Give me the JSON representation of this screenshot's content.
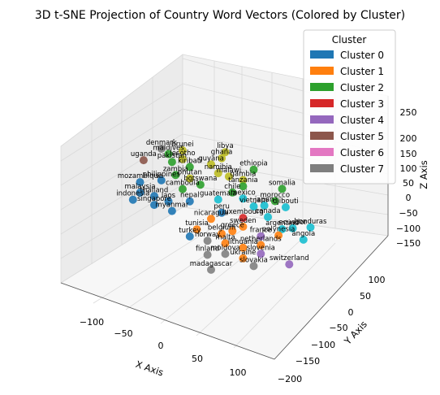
{
  "chart_data": {
    "type": "scatter",
    "projection": "3d",
    "title": "3D t-SNE Projection of Country Word Vectors (Colored by Cluster)",
    "xlabel": "X Axis",
    "ylabel": "Y Axis",
    "zlabel": "Z Axis",
    "xlim": [
      -140,
      140
    ],
    "ylim": [
      -200,
      130
    ],
    "zlim": [
      -170,
      270
    ],
    "x_ticks": [
      "−100",
      "−50",
      "0",
      "50",
      "100"
    ],
    "y_ticks": [
      "−200",
      "−150",
      "−100",
      "−50",
      "0",
      "50",
      "100"
    ],
    "z_ticks": [
      "−150",
      "−100",
      "−50",
      "0",
      "50",
      "100",
      "150",
      "200",
      "250"
    ],
    "grid": true,
    "legend": {
      "title": "Cluster",
      "position": "top-right",
      "entries": [
        {
          "label": "Cluster 0",
          "color": "#1f77b4"
        },
        {
          "label": "Cluster 1",
          "color": "#ff7f0e"
        },
        {
          "label": "Cluster 2",
          "color": "#2ca02c"
        },
        {
          "label": "Cluster 3",
          "color": "#d62728"
        },
        {
          "label": "Cluster 4",
          "color": "#9467bd"
        },
        {
          "label": "Cluster 5",
          "color": "#8c564b"
        },
        {
          "label": "Cluster 6",
          "color": "#e377c2"
        },
        {
          "label": "Cluster 7",
          "color": "#7f7f7f"
        }
      ]
    },
    "extra_colors": [
      "#bcbd22",
      "#17becf"
    ],
    "points": [
      {
        "label": "brunei",
        "x": -40,
        "y": 30,
        "z": 170,
        "c": 8
      },
      {
        "label": "libya",
        "x": 20,
        "y": 30,
        "z": 195,
        "c": 8
      },
      {
        "label": "ghana",
        "x": 15,
        "y": 30,
        "z": 175,
        "c": 8
      },
      {
        "label": "denmark",
        "x": -70,
        "y": 30,
        "z": 160,
        "c": 7
      },
      {
        "label": "maldives",
        "x": -60,
        "y": 30,
        "z": 150,
        "c": 2
      },
      {
        "label": "lesotho",
        "x": -40,
        "y": 30,
        "z": 145,
        "c": 8
      },
      {
        "label": "guyana",
        "x": 0,
        "y": 30,
        "z": 150,
        "c": 8
      },
      {
        "label": "ethiopia",
        "x": 60,
        "y": 30,
        "z": 165,
        "c": 2
      },
      {
        "label": "pakistan",
        "x": -55,
        "y": 30,
        "z": 130,
        "c": 2
      },
      {
        "label": "kiribati",
        "x": -30,
        "y": 30,
        "z": 128,
        "c": 2
      },
      {
        "label": "namibia",
        "x": 10,
        "y": 30,
        "z": 130,
        "c": 8
      },
      {
        "label": "malawi",
        "x": 25,
        "y": 30,
        "z": 128,
        "c": 8
      },
      {
        "label": "gambia",
        "x": 45,
        "y": 30,
        "z": 128,
        "c": 8
      },
      {
        "label": "somalia",
        "x": 100,
        "y": 30,
        "z": 130,
        "c": 2
      },
      {
        "label": "uganda",
        "x": -95,
        "y": 30,
        "z": 115,
        "c": 5
      },
      {
        "label": "tanzania",
        "x": 45,
        "y": 30,
        "z": 110,
        "c": 2
      },
      {
        "label": "morocco",
        "x": 90,
        "y": 30,
        "z": 90,
        "c": 2
      },
      {
        "label": "zambia",
        "x": -50,
        "y": 30,
        "z": 95,
        "c": 2
      },
      {
        "label": "bhutan",
        "x": -30,
        "y": 30,
        "z": 95,
        "c": 8
      },
      {
        "label": "japan",
        "x": 75,
        "y": 30,
        "z": 70,
        "c": 9
      },
      {
        "label": "botswana",
        "x": -15,
        "y": 30,
        "z": 85,
        "c": 2
      },
      {
        "label": "chile",
        "x": 30,
        "y": 30,
        "z": 85,
        "c": 2
      },
      {
        "label": "djibouti",
        "x": 105,
        "y": 30,
        "z": 80,
        "c": 9
      },
      {
        "label": "mexico",
        "x": 45,
        "y": 30,
        "z": 75,
        "c": 9
      },
      {
        "label": "vietnam",
        "x": 60,
        "y": 30,
        "z": 60,
        "c": 9
      },
      {
        "label": "philippines",
        "x": -70,
        "y": 30,
        "z": 70,
        "c": 0
      },
      {
        "label": "cambodia",
        "x": -40,
        "y": 30,
        "z": 60,
        "c": 2
      },
      {
        "label": "guatemala",
        "x": 10,
        "y": 30,
        "z": 55,
        "c": 9
      },
      {
        "label": "honduras",
        "x": 140,
        "y": 30,
        "z": 40,
        "c": 9
      },
      {
        "label": "mozambique",
        "x": -100,
        "y": 30,
        "z": 50,
        "c": 0
      },
      {
        "label": "canada",
        "x": 80,
        "y": 30,
        "z": 40,
        "c": 9
      },
      {
        "label": "nepal",
        "x": -30,
        "y": 30,
        "z": 30,
        "c": 0
      },
      {
        "label": "ecuador",
        "x": 115,
        "y": 30,
        "z": 25,
        "c": 9
      },
      {
        "label": "malaysia",
        "x": -100,
        "y": 30,
        "z": 20,
        "c": 0
      },
      {
        "label": "thailand",
        "x": -80,
        "y": 30,
        "z": 20,
        "c": 0
      },
      {
        "label": "laos",
        "x": -60,
        "y": 30,
        "z": 15,
        "c": 0
      },
      {
        "label": "peru",
        "x": 15,
        "y": 30,
        "z": 20,
        "c": 0
      },
      {
        "label": "luxembourg",
        "x": 45,
        "y": 30,
        "z": 20,
        "c": 3
      },
      {
        "label": "argentina",
        "x": 100,
        "y": 30,
        "z": 15,
        "c": 9
      },
      {
        "label": "angola",
        "x": 130,
        "y": 30,
        "z": 0,
        "c": 9
      },
      {
        "label": "indonesia",
        "x": -110,
        "y": 30,
        "z": -5,
        "c": 0
      },
      {
        "label": "singapore",
        "x": -80,
        "y": 30,
        "z": -5,
        "c": 0
      },
      {
        "label": "myanmar",
        "x": -55,
        "y": 30,
        "z": -10,
        "c": 0
      },
      {
        "label": "nicaragua",
        "x": 0,
        "y": 30,
        "z": -5,
        "c": 1
      },
      {
        "label": "sweden",
        "x": 45,
        "y": 30,
        "z": -5,
        "c": 1
      },
      {
        "label": "polynesia",
        "x": 95,
        "y": 30,
        "z": -5,
        "c": 1
      },
      {
        "label": "greece",
        "x": 30,
        "y": 30,
        "z": -25,
        "c": 1
      },
      {
        "label": "france",
        "x": 70,
        "y": 30,
        "z": -20,
        "c": 4
      },
      {
        "label": "tunisia",
        "x": -20,
        "y": 30,
        "z": -45,
        "c": 1
      },
      {
        "label": "belgium",
        "x": 15,
        "y": 30,
        "z": -40,
        "c": 1
      },
      {
        "label": "netherlands",
        "x": 70,
        "y": 30,
        "z": -45,
        "c": 1
      },
      {
        "label": "turkey",
        "x": -30,
        "y": 30,
        "z": -70,
        "c": 0
      },
      {
        "label": "norway",
        "x": -5,
        "y": 30,
        "z": -70,
        "c": 7
      },
      {
        "label": "malta",
        "x": 20,
        "y": 30,
        "z": -65,
        "c": 1
      },
      {
        "label": "lithuania",
        "x": 45,
        "y": 30,
        "z": -65,
        "c": 1
      },
      {
        "label": "slovenia",
        "x": 70,
        "y": 30,
        "z": -70,
        "c": 4
      },
      {
        "label": "switzerland",
        "x": 110,
        "y": 30,
        "z": -80,
        "c": 4
      },
      {
        "label": "moldova",
        "x": 20,
        "y": 30,
        "z": -95,
        "c": 7
      },
      {
        "label": "ukraine",
        "x": 45,
        "y": 30,
        "z": -95,
        "c": 1
      },
      {
        "label": "finland",
        "x": -5,
        "y": 30,
        "z": -110,
        "c": 7
      },
      {
        "label": "slovakia",
        "x": 60,
        "y": 30,
        "z": -110,
        "c": 7
      },
      {
        "label": "madagascar",
        "x": 0,
        "y": 30,
        "z": -150,
        "c": 7
      }
    ]
  }
}
